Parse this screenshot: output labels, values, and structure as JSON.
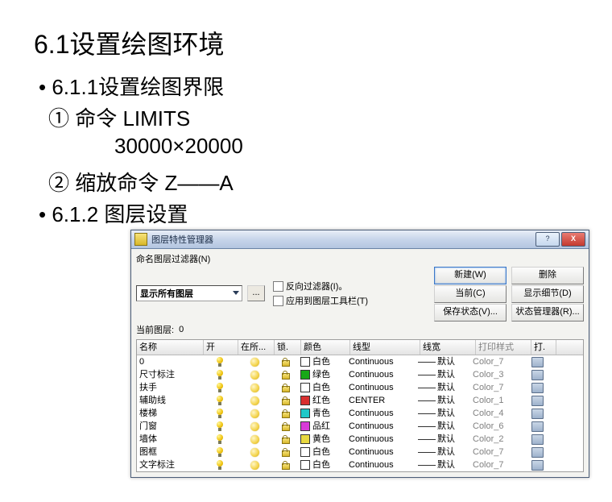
{
  "heading": "6.1设置绘图环境",
  "line1": "• 6.1.1设置绘图界限",
  "line2": "① 命令 LIMITS",
  "line3": "30000×20000",
  "line4": "② 缩放命令 Z——A",
  "line5": "• 6.1.2 图层设置",
  "dialog": {
    "title": "图层特性管理器",
    "help_btn": "?",
    "close_btn": "X",
    "filter_label": "命名图层过滤器(N)",
    "filter_value": "显示所有图层",
    "dots": "...",
    "chk_invert": "反向过滤器(I)。",
    "chk_apply": "应用到图层工具栏(T)",
    "btn_new": "新建(W)",
    "btn_delete": "删除",
    "btn_current": "当前(C)",
    "btn_detail": "显示细节(D)",
    "btn_savestate": "保存状态(V)...",
    "btn_statemgr": "状态管理器(R)...",
    "cur_layer_label": "当前图层:",
    "cur_layer_value": "0",
    "cols": {
      "name": "名称",
      "on": "开",
      "freeze": "在所...",
      "lock": "锁.",
      "color": "颜色",
      "ltype": "线型",
      "lweight": "线宽",
      "pstyle": "打印样式",
      "print": "打."
    },
    "rows": [
      {
        "name": "0",
        "color": "白色",
        "swatch": "#ffffff",
        "ltype": "Continuous",
        "lw": "默认",
        "ps": "Color_7"
      },
      {
        "name": "尺寸标注",
        "color": "绿色",
        "swatch": "#18a818",
        "ltype": "Continuous",
        "lw": "默认",
        "ps": "Color_3"
      },
      {
        "name": "扶手",
        "color": "白色",
        "swatch": "#ffffff",
        "ltype": "Continuous",
        "lw": "默认",
        "ps": "Color_7"
      },
      {
        "name": "辅助线",
        "color": "红色",
        "swatch": "#d93030",
        "ltype": "CENTER",
        "lw": "默认",
        "ps": "Color_1"
      },
      {
        "name": "楼梯",
        "color": "青色",
        "swatch": "#20c8c8",
        "ltype": "Continuous",
        "lw": "默认",
        "ps": "Color_4"
      },
      {
        "name": "门窗",
        "color": "品红",
        "swatch": "#d83ad8",
        "ltype": "Continuous",
        "lw": "默认",
        "ps": "Color_6"
      },
      {
        "name": "墙体",
        "color": "黄色",
        "swatch": "#e8d840",
        "ltype": "Continuous",
        "lw": "默认",
        "ps": "Color_2"
      },
      {
        "name": "图框",
        "color": "白色",
        "swatch": "#ffffff",
        "ltype": "Continuous",
        "lw": "默认",
        "ps": "Color_7"
      },
      {
        "name": "文字标注",
        "color": "白色",
        "swatch": "#ffffff",
        "ltype": "Continuous",
        "lw": "默认",
        "ps": "Color_7"
      }
    ]
  }
}
